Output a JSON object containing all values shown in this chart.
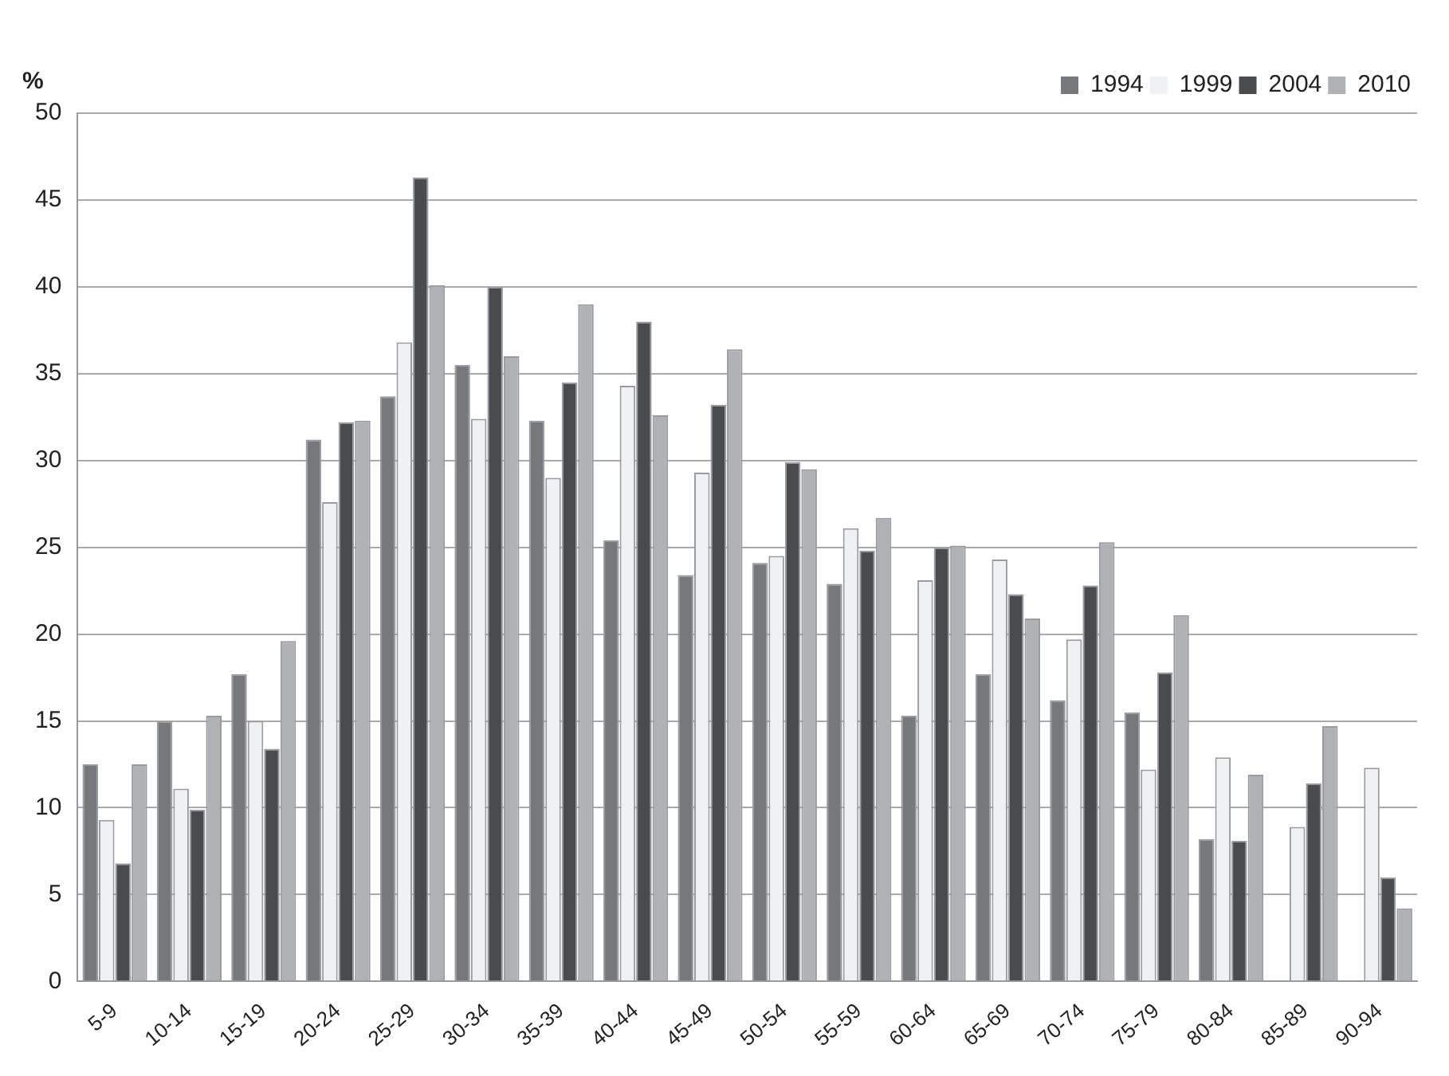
{
  "chart_data": {
    "type": "bar",
    "ylabel": "%",
    "categories": [
      "5-9",
      "10-14",
      "15-19",
      "20-24",
      "25-29",
      "30-34",
      "35-39",
      "40-44",
      "45-49",
      "50-54",
      "55-59",
      "60-64",
      "65-69",
      "70-74",
      "75-79",
      "80-84",
      "85-89",
      "90-94"
    ],
    "series": [
      {
        "name": "1994",
        "color": "#77787c",
        "values": [
          12.5,
          15,
          17.7,
          31.2,
          33.7,
          35.5,
          32.3,
          25.4,
          23.4,
          24.1,
          22.9,
          15.3,
          17.7,
          16.2,
          15.5,
          8.2,
          null,
          null
        ]
      },
      {
        "name": "1999",
        "color": "#f0f1f3",
        "values": [
          9.3,
          11.1,
          15,
          27.6,
          36.8,
          32.4,
          29,
          34.3,
          29.3,
          24.5,
          26.1,
          23.1,
          24.3,
          19.7,
          12.2,
          12.9,
          8.9,
          12.3
        ]
      },
      {
        "name": "2004",
        "color": "#4a4b4e",
        "values": [
          6.8,
          9.9,
          13.4,
          32.2,
          46.3,
          40,
          34.5,
          38,
          33.2,
          29.9,
          24.8,
          25,
          22.3,
          22.8,
          17.8,
          8.1,
          11.4,
          6
        ]
      },
      {
        "name": "2010",
        "color": "#b0b1b4",
        "values": [
          12.5,
          15.3,
          19.6,
          32.3,
          40.1,
          36,
          39,
          32.6,
          36.4,
          29.5,
          26.7,
          25.1,
          20.9,
          25.3,
          21.1,
          11.9,
          14.7,
          4.2
        ]
      }
    ],
    "ylim": [
      0,
      50
    ],
    "yticks": [
      0,
      5,
      10,
      15,
      20,
      25,
      30,
      35,
      40,
      45,
      50
    ],
    "grid": "y",
    "legend": "top right"
  }
}
